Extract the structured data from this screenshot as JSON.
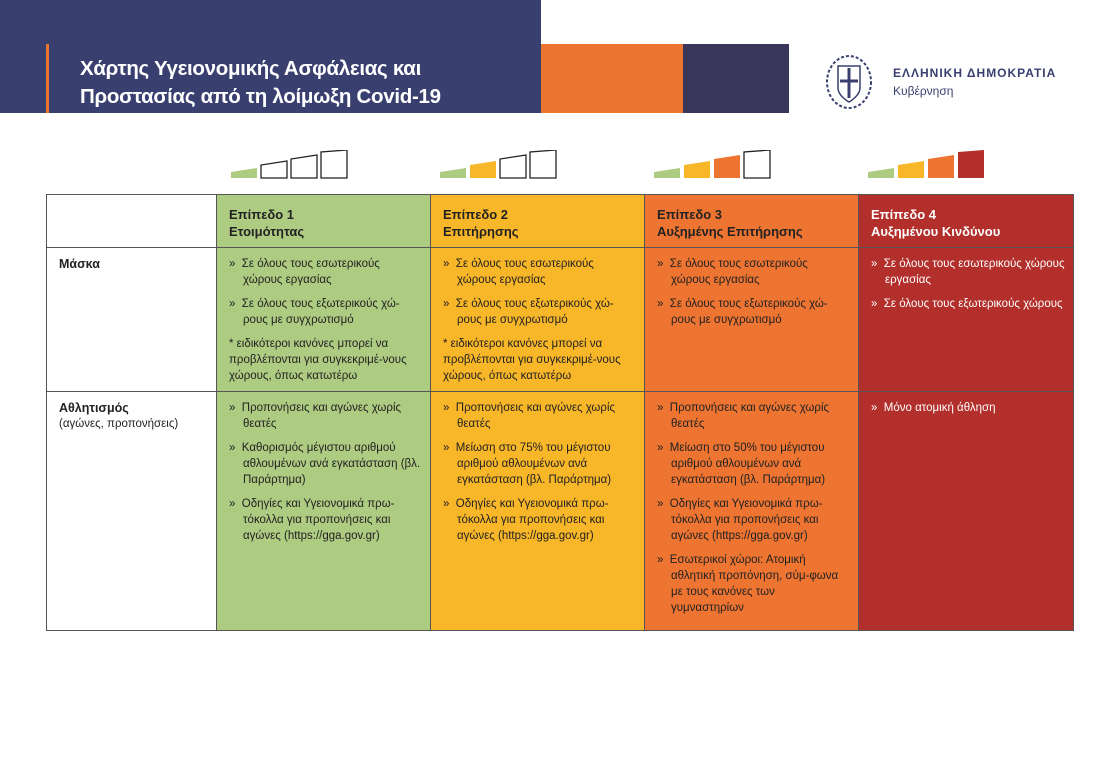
{
  "header": {
    "title_line1": "Χάρτης Υγειονομικής Ασφάλειας και",
    "title_line2": "Προστασίας από τη λοίμωξη Covid-19",
    "gov_name": "ΕΛΛΗΝΙΚΗ ΔΗΜΟΚΡΑΤΙΑ",
    "gov_sub": "Κυβέρνηση"
  },
  "colors": {
    "navy": "#394070",
    "orange": "#ec7530",
    "dark": "#38375a",
    "level1": "#aecb82",
    "level2": "#f8b629",
    "level3": "#ed7431",
    "level4": "#b22f2b"
  },
  "levels": [
    {
      "title": "Επίπεδο 1",
      "subtitle": "Ετοιμότητας",
      "filled": 1
    },
    {
      "title": "Επίπεδο 2",
      "subtitle": "Επιτήρησης",
      "filled": 2
    },
    {
      "title": "Επίπεδο 3",
      "subtitle": "Αυξημένης Επιτήρησης",
      "filled": 3
    },
    {
      "title": "Επίπεδο 4",
      "subtitle": "Αυξημένου Κινδύνου",
      "filled": 4
    }
  ],
  "rows": [
    {
      "label": "Μάσκα",
      "sublabel": "",
      "cells": [
        {
          "items": [
            "Σε όλους τους εσωτερικούς χώρους εργασίας",
            "Σε όλους τους εξωτερικούς χώ-ρους με συγχρωτισμό"
          ],
          "note": "* ειδικότεροι κανόνες μπορεί να προβλέπονται για συγκεκριμέ-νους χώρους, όπως κατωτέρω"
        },
        {
          "items": [
            "Σε όλους τους εσωτερικούς χώρους εργασίας",
            "Σε όλους τους εξωτερικούς χώ-ρους με συγχρωτισμό"
          ],
          "note": "* ειδικότεροι κανόνες μπορεί να προβλέπονται για συγκεκριμέ-νους χώρους, όπως κατωτέρω"
        },
        {
          "items": [
            "Σε όλους τους εσωτερικούς χώρους εργασίας",
            "Σε όλους τους εξωτερικούς χώ-ρους με συγχρωτισμό"
          ],
          "note": ""
        },
        {
          "items": [
            "Σε όλους τους εσωτερικούς χώρους εργασίας",
            "Σε όλους τους εξωτερικούς χώρους"
          ],
          "note": ""
        }
      ]
    },
    {
      "label": "Αθλητισμός",
      "sublabel": "(αγώνες, προπονήσεις)",
      "cells": [
        {
          "items": [
            "Προπονήσεις και αγώνες χωρίς θεατές",
            "Καθορισμός μέγιστου αριθμού αθλουμένων ανά εγκατάσταση (βλ. Παράρτημα)",
            "Οδηγίες και Υγειονομικά πρω-τόκολλα για προπονήσεις και αγώνες (https://gga.gov.gr)"
          ],
          "note": ""
        },
        {
          "items": [
            "Προπονήσεις και αγώνες χωρίς θεατές",
            "Μείωση στο 75% του μέγιστου αριθμού αθλουμένων ανά εγκατάσταση (βλ. Παράρτημα)",
            "Οδηγίες και Υγειονομικά πρω-τόκολλα για προπονήσεις και αγώνες (https://gga.gov.gr)"
          ],
          "note": ""
        },
        {
          "items": [
            "Προπονήσεις και αγώνες χωρίς θεατές",
            "Μείωση στο 50% του μέγιστου αριθμού αθλουμένων ανά εγκατάσταση (βλ. Παράρτημα)",
            "Οδηγίες και Υγειονομικά πρω-τόκολλα για προπονήσεις και αγώνες (https://gga.gov.gr)",
            "Εσωτερικοί χώροι: Ατομική αθλητική προπόνηση, σύμ-φωνα με τους κανόνες των γυμναστηρίων"
          ],
          "note": ""
        },
        {
          "items": [
            "Μόνο ατομική άθληση"
          ],
          "note": ""
        }
      ]
    }
  ]
}
